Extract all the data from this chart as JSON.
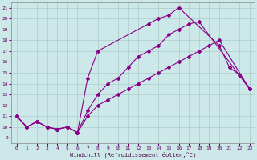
{
  "title": "",
  "xlabel": "Windchill (Refroidissement éolien,°C)",
  "ylabel": "",
  "bg_color": "#cce8e8",
  "grid_color": "#aacccc",
  "line_color": "#880088",
  "xlim": [
    -0.5,
    23.5
  ],
  "ylim": [
    8.5,
    21.5
  ],
  "xticks": [
    0,
    1,
    2,
    3,
    4,
    5,
    6,
    7,
    8,
    9,
    10,
    11,
    12,
    13,
    14,
    15,
    16,
    17,
    18,
    19,
    20,
    21,
    22,
    23
  ],
  "yticks": [
    9,
    10,
    11,
    12,
    13,
    14,
    15,
    16,
    17,
    18,
    19,
    20,
    21
  ],
  "series": [
    {
      "x": [
        0,
        1,
        2,
        3,
        4,
        5,
        6,
        7,
        8,
        9,
        10,
        11,
        12,
        13,
        14,
        15,
        16,
        17,
        18,
        19,
        20,
        23
      ],
      "y": [
        11,
        10,
        10.5,
        10,
        9.8,
        10,
        9.5,
        11.0,
        12.0,
        12.5,
        13.0,
        13.5,
        14.0,
        14.5,
        15.0,
        15.5,
        16.0,
        16.5,
        17.0,
        17.5,
        18.0,
        13.5
      ]
    },
    {
      "x": [
        0,
        1,
        2,
        3,
        4,
        5,
        6,
        7,
        8,
        9,
        10,
        11,
        12,
        13,
        14,
        15,
        16,
        17,
        18,
        23
      ],
      "y": [
        11,
        10,
        10.5,
        10,
        9.8,
        10,
        9.5,
        11.5,
        13.0,
        14.0,
        14.5,
        15.5,
        16.5,
        17.0,
        17.5,
        18.5,
        19.0,
        19.5,
        19.7,
        13.5
      ]
    },
    {
      "x": [
        0,
        1,
        2,
        3,
        4,
        5,
        6,
        7,
        8,
        13,
        14,
        15,
        16,
        20,
        21,
        22,
        23
      ],
      "y": [
        11,
        10,
        10.5,
        10,
        9.8,
        10,
        9.5,
        14.5,
        17.0,
        19.5,
        20.0,
        20.3,
        21.0,
        17.5,
        15.5,
        14.8,
        13.5
      ]
    }
  ]
}
